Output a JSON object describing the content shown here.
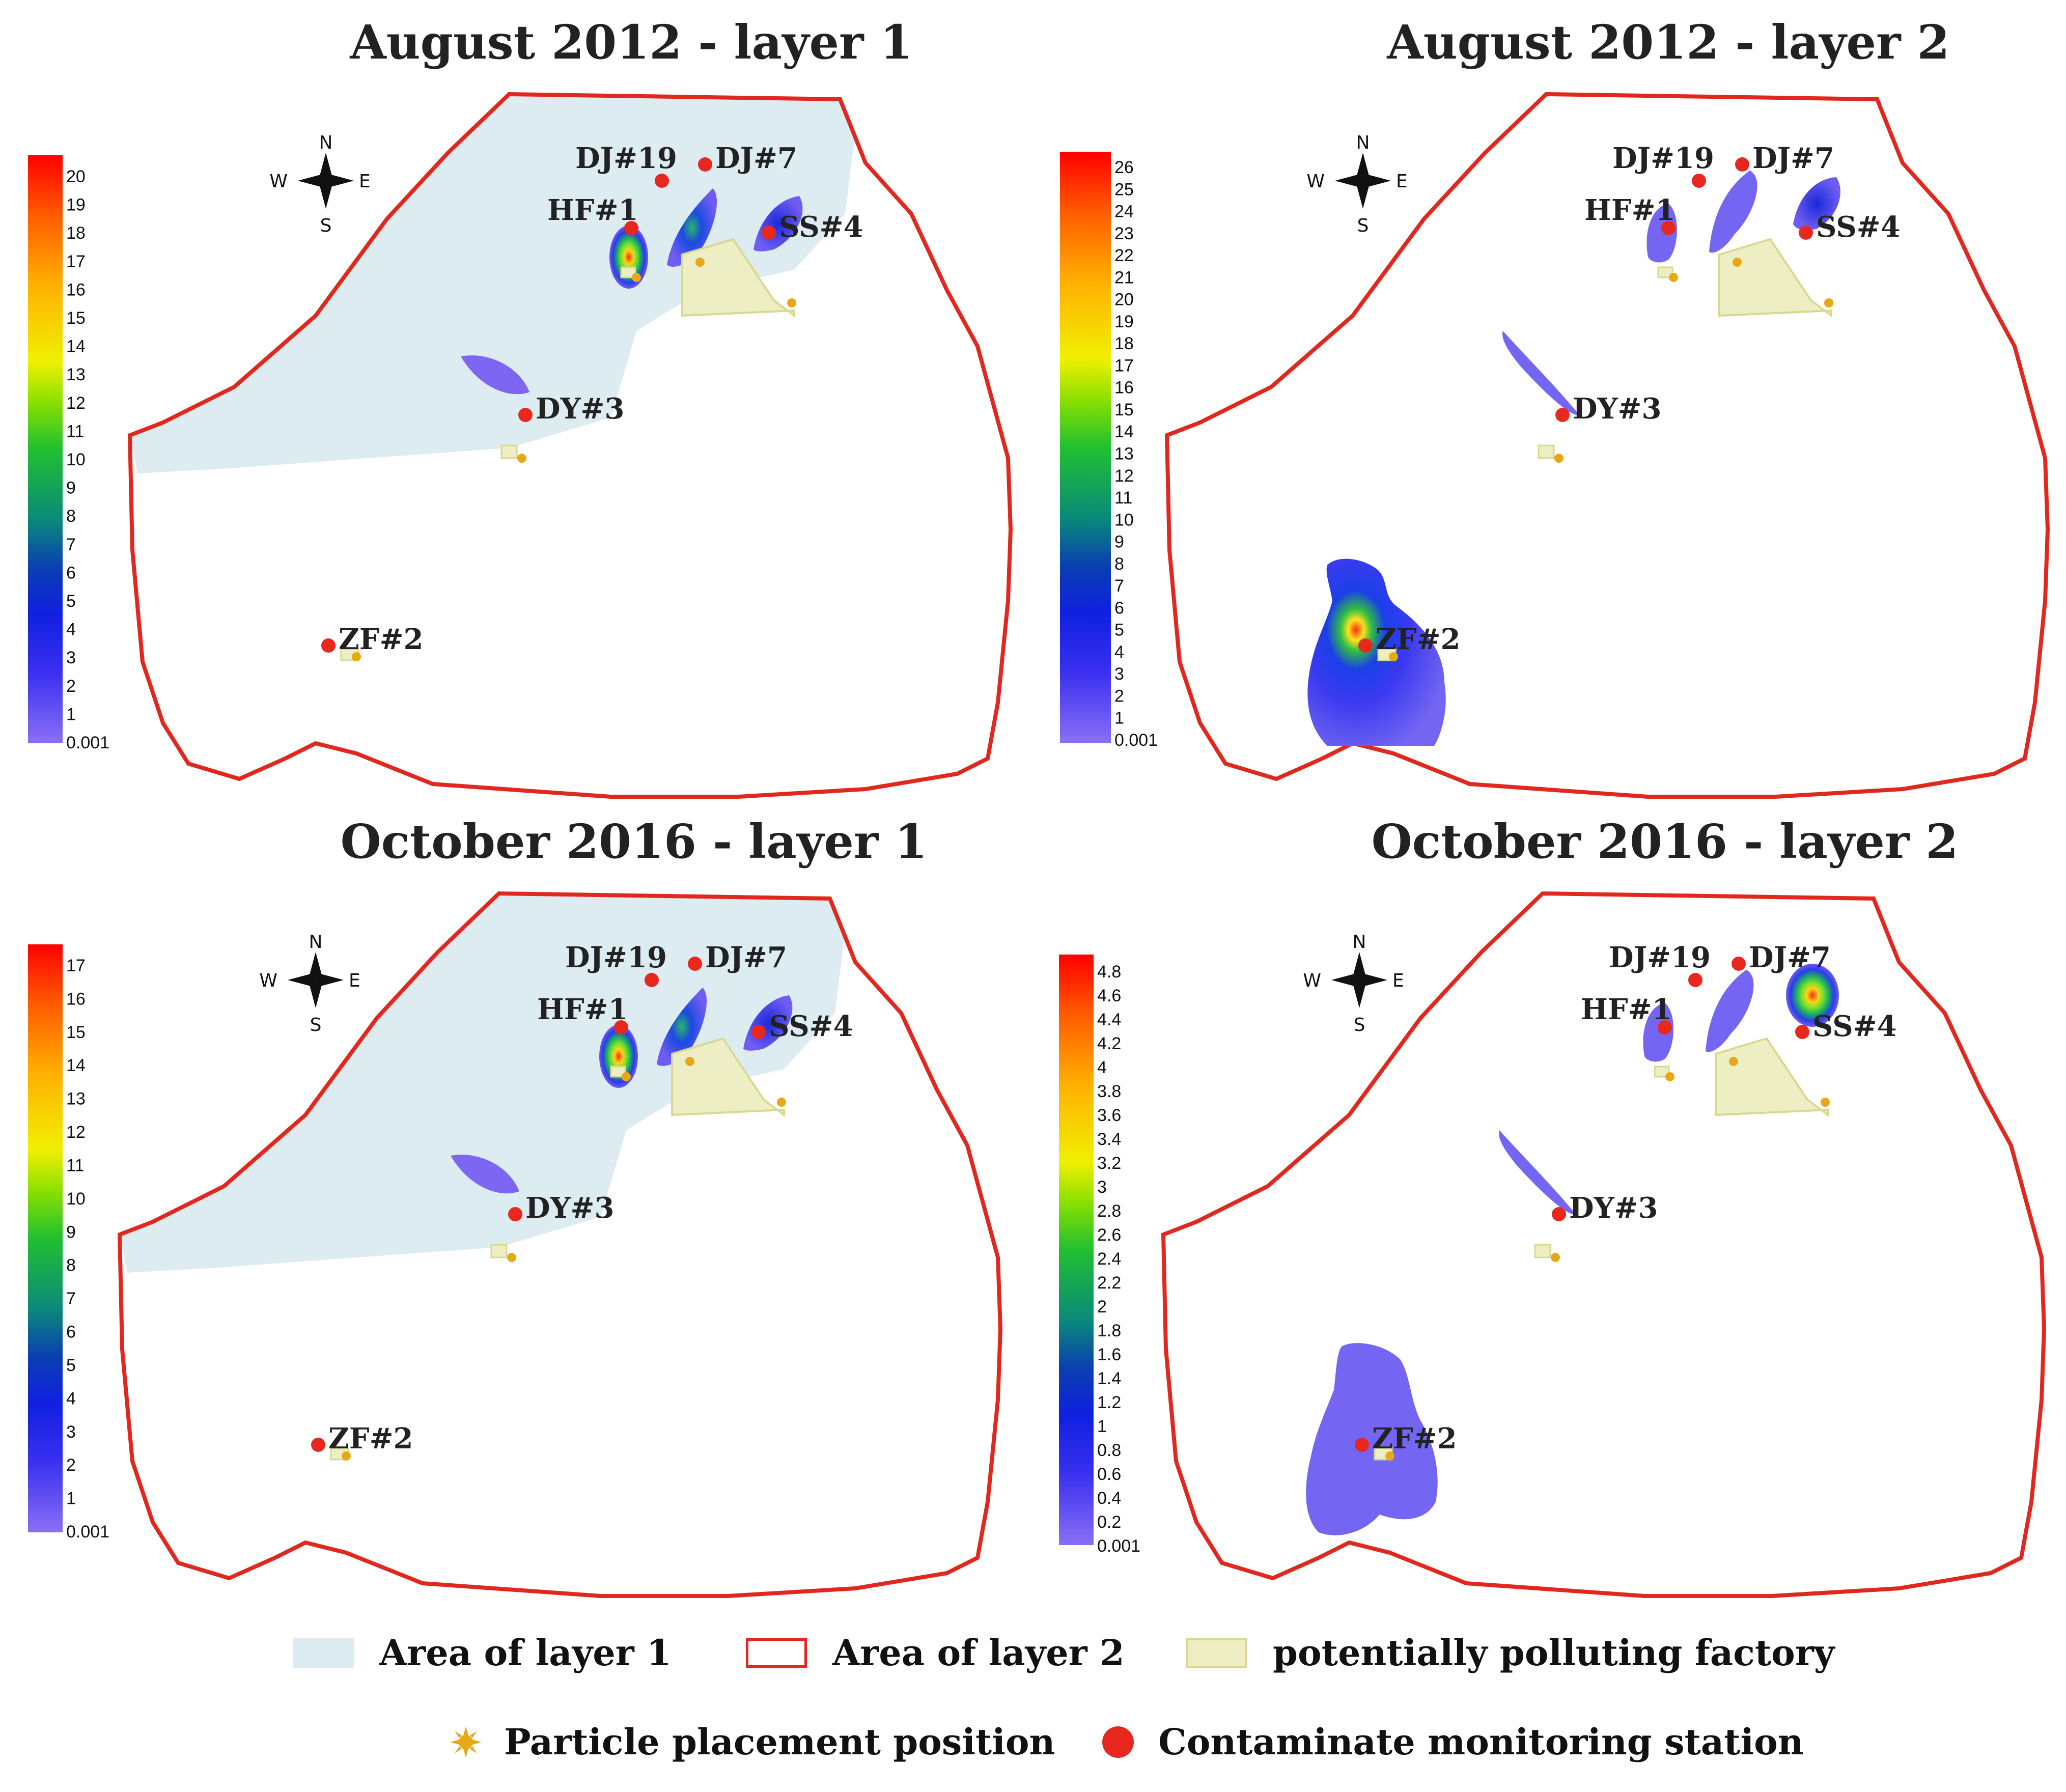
{
  "colors": {
    "layer1_area": "#dcecf1",
    "layer2_boundary": "#e0281e",
    "factory_fill": "#eeeec4",
    "factory_stroke": "#d8d890",
    "particle": "#e6a817",
    "station": "#e8281e"
  },
  "compass": {
    "n": "N",
    "s": "S",
    "w": "W",
    "e": "E"
  },
  "stations": [
    "DJ#19",
    "DJ#7",
    "HF#1",
    "SS#4",
    "DY#3",
    "ZF#2"
  ],
  "panels": [
    {
      "title": "August 2012 - layer 1",
      "colorbar_labels": [
        "20",
        "19",
        "18",
        "17",
        "16",
        "15",
        "14",
        "13",
        "12",
        "11",
        "10",
        "9",
        "8",
        "7",
        "6",
        "5",
        "4",
        "3",
        "2",
        "1",
        "0.001"
      ]
    },
    {
      "title": "August 2012 - layer 2",
      "colorbar_labels": [
        "26",
        "25",
        "24",
        "23",
        "22",
        "21",
        "20",
        "19",
        "18",
        "17",
        "16",
        "15",
        "14",
        "13",
        "12",
        "11",
        "10",
        "9",
        "8",
        "7",
        "6",
        "5",
        "4",
        "3",
        "2",
        "1",
        "0.001"
      ]
    },
    {
      "title": "October 2016 - layer 1",
      "colorbar_labels": [
        "17",
        "16",
        "15",
        "14",
        "13",
        "12",
        "11",
        "10",
        "9",
        "8",
        "7",
        "6",
        "5",
        "4",
        "3",
        "2",
        "1",
        "0.001"
      ]
    },
    {
      "title": "October 2016 - layer 2",
      "colorbar_labels": [
        "4.8",
        "4.6",
        "4.4",
        "4.2",
        "4",
        "3.8",
        "3.6",
        "3.4",
        "3.2",
        "3",
        "2.8",
        "2.6",
        "2.4",
        "2.2",
        "2",
        "1.8",
        "1.6",
        "1.4",
        "1.2",
        "1",
        "0.8",
        "0.6",
        "0.4",
        "0.2",
        "0.001"
      ]
    }
  ],
  "legend": {
    "layer1": "Area of layer 1",
    "layer2": "Area of layer 2",
    "factory": "potentially polluting factory",
    "particle": "Particle placement position",
    "station": "Contaminate monitoring station"
  }
}
